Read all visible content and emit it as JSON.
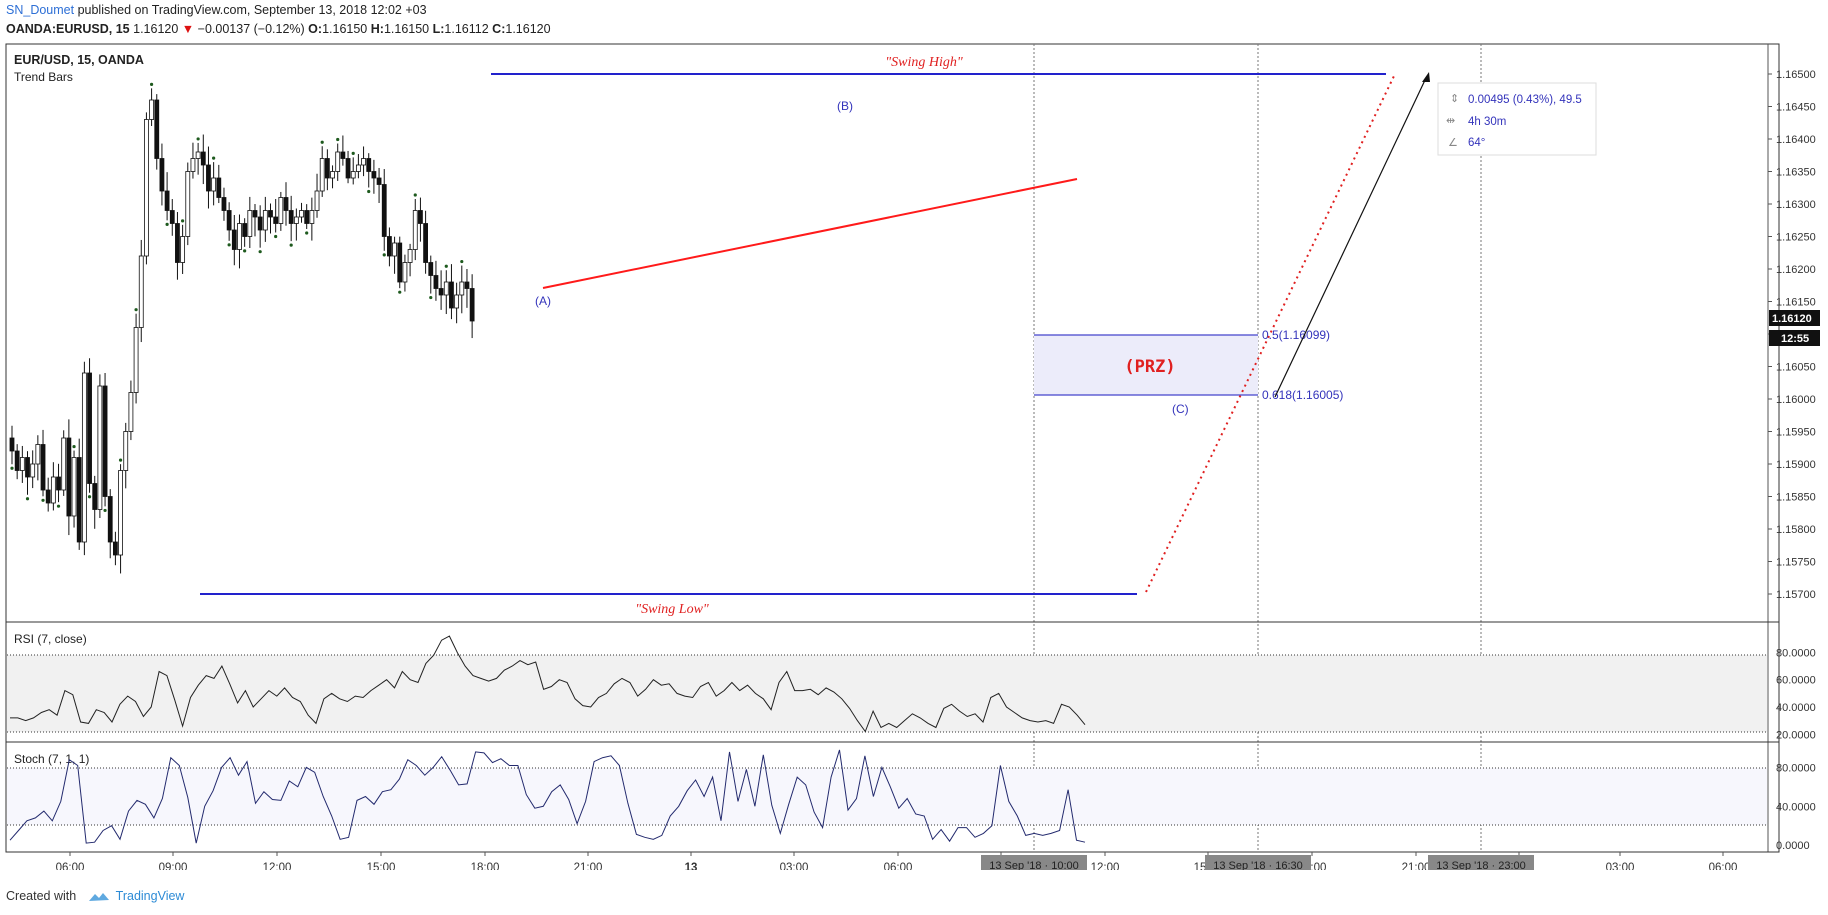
{
  "header": {
    "user": "SN_Doumet",
    "published": " published on TradingView.com, September 13, 2018 12:02 +03",
    "symbol": "OANDA:EURUSD, 15",
    "last": "1.16120",
    "change": "−0.00137 (−0.12%)",
    "o_label": "O:",
    "o": "1.16150",
    "h_label": "H:",
    "h": "1.16150",
    "l_label": "L:",
    "l": "1.16112",
    "c_label": "C:",
    "c": "1.16120"
  },
  "footer": {
    "created_with": "Created with",
    "brand": "TradingView"
  },
  "chart_data": [
    {
      "type": "candlestick",
      "title": "EUR/USD, 15, OANDA",
      "subtitle": "Trend Bars",
      "ylim": [
        1.1568,
        1.1653
      ],
      "price_ticks": [
        "1.16500",
        "1.16450",
        "1.16400",
        "1.16350",
        "1.16300",
        "1.16250",
        "1.16200",
        "1.16150",
        "1.16100",
        "1.16050",
        "1.16000",
        "1.15950",
        "1.15900",
        "1.15850",
        "1.15800",
        "1.15750",
        "1.15700"
      ],
      "last_price": "1.16120",
      "countdown": "12:55",
      "x_ticks": [
        "06:00",
        "09:00",
        "12:00",
        "15:00",
        "18:00",
        "21:00",
        "13",
        "03:00",
        "06:00",
        "09:00",
        "12:00",
        "15:00",
        "18:00",
        "21:00",
        "00:00",
        "03:00",
        "06:00"
      ],
      "crosshair_labels": [
        "13 Sep '18 · 10:00",
        "13 Sep '18 · 16:30",
        "13 Sep '18 · 23:00"
      ],
      "close_path": [
        1.1592,
        1.1589,
        1.1591,
        1.1588,
        1.159,
        1.1593,
        1.1586,
        1.1584,
        1.1588,
        1.1586,
        1.1594,
        1.1582,
        1.1591,
        1.1578,
        1.1604,
        1.1587,
        1.1583,
        1.1602,
        1.1585,
        1.1578,
        1.1576,
        1.1589,
        1.1595,
        1.1601,
        1.1611,
        1.1622,
        1.1643,
        1.1646,
        1.1637,
        1.1632,
        1.1629,
        1.1627,
        1.1621,
        1.1625,
        1.1635,
        1.1637,
        1.1638,
        1.1636,
        1.1632,
        1.1634,
        1.1631,
        1.1629,
        1.1626,
        1.1623,
        1.1627,
        1.1625,
        1.1629,
        1.1628,
        1.1626,
        1.1629,
        1.1628,
        1.1627,
        1.1631,
        1.1629,
        1.1627,
        1.1628,
        1.1629,
        1.1627,
        1.1629,
        1.1632,
        1.1637,
        1.1634,
        1.1635,
        1.1638,
        1.1637,
        1.1634,
        1.1635,
        1.1636,
        1.1637,
        1.1635,
        1.1634,
        1.1633,
        1.1625,
        1.1622,
        1.1624,
        1.1618,
        1.1621,
        1.1623,
        1.1629,
        1.1627,
        1.1621,
        1.1619,
        1.1617,
        1.1616,
        1.1618,
        1.1614,
        1.1616,
        1.1618,
        1.1617,
        1.1612
      ],
      "annotations": {
        "swing_high": "\"Swing High\"",
        "swing_low": "\"Swing Low\"",
        "point_a": "(A)",
        "point_b": "(B)",
        "point_c": "(C)",
        "prz": "(PRZ)",
        "fib_05": "0.5(1.16099)",
        "fib_0618": "0.618(1.16005)",
        "swing_high_price": 1.165,
        "swing_low_price": 1.157,
        "prz_top": 1.16099,
        "prz_bottom": 1.16005,
        "measure_price": "0.00495 (0.43%), 49.5",
        "measure_time": "4h 30m",
        "measure_angle": "64°"
      },
      "colors": {
        "swing_lines": "#2222cc",
        "trendline": "#ff0000",
        "prz_fill": "#eceaf8",
        "annotation_text": "#3333bb",
        "red_text": "#e02020",
        "dots": "#1e5a1e"
      }
    },
    {
      "type": "line",
      "title": "RSI (7, close)",
      "ylim": [
        18,
        95
      ],
      "ticks": [
        "80.0000",
        "60.0000",
        "40.0000",
        "20.0000"
      ],
      "levels": [
        75,
        25
      ],
      "values": [
        32,
        32,
        30,
        32,
        36,
        38,
        34,
        52,
        49,
        29,
        28,
        38,
        36,
        29,
        42,
        48,
        44,
        33,
        40,
        66,
        63,
        45,
        26,
        47,
        56,
        63,
        61,
        70,
        57,
        43,
        52,
        40,
        46,
        52,
        48,
        54,
        47,
        44,
        34,
        28,
        46,
        50,
        46,
        44,
        48,
        47,
        52,
        56,
        60,
        54,
        66,
        60,
        58,
        72,
        78,
        89,
        92,
        80,
        70,
        63,
        61,
        59,
        61,
        67,
        70,
        74,
        71,
        73,
        53,
        55,
        60,
        58,
        46,
        41,
        40,
        47,
        50,
        57,
        61,
        58,
        48,
        53,
        60,
        56,
        57,
        50,
        48,
        47,
        55,
        58,
        48,
        52,
        58,
        52,
        56,
        50,
        46,
        38,
        58,
        66,
        52,
        52,
        53,
        49,
        54,
        51,
        46,
        39,
        30,
        22,
        37,
        25,
        28,
        25,
        30,
        35,
        32,
        28,
        25,
        39,
        42,
        37,
        33,
        35,
        29,
        47,
        50,
        40,
        36,
        32,
        30,
        29,
        30,
        28,
        42,
        40,
        34,
        27
      ],
      "colors": {
        "line": "#222222",
        "level": "#333333",
        "band": "#f1f1f1"
      }
    },
    {
      "type": "line",
      "title": "Stoch (7, 1, 1)",
      "ylim": [
        -3,
        100
      ],
      "ticks": [
        "80.0000",
        "40.0000",
        "0.0000"
      ],
      "levels": [
        80,
        20
      ],
      "values": [
        5,
        15,
        25,
        28,
        35,
        25,
        45,
        88,
        82,
        2,
        3,
        15,
        20,
        6,
        35,
        46,
        42,
        28,
        48,
        90,
        82,
        49,
        2,
        40,
        56,
        80,
        90,
        72,
        86,
        43,
        55,
        47,
        46,
        66,
        60,
        80,
        75,
        50,
        30,
        6,
        8,
        46,
        50,
        42,
        55,
        57,
        68,
        88,
        82,
        72,
        80,
        91,
        77,
        62,
        63,
        96,
        95,
        85,
        89,
        82,
        82,
        52,
        38,
        40,
        55,
        62,
        47,
        22,
        45,
        86,
        90,
        92,
        82,
        43,
        11,
        8,
        6,
        10,
        30,
        40,
        56,
        67,
        50,
        70,
        25,
        96,
        45,
        78,
        40,
        93,
        41,
        12,
        42,
        70,
        62,
        34,
        18,
        70,
        98,
        36,
        48,
        92,
        50,
        80,
        60,
        38,
        48,
        32,
        30,
        6,
        16,
        4,
        18,
        18,
        8,
        12,
        20,
        82,
        45,
        30,
        10,
        12,
        10,
        12,
        15,
        57,
        5,
        3
      ]
    }
  ]
}
